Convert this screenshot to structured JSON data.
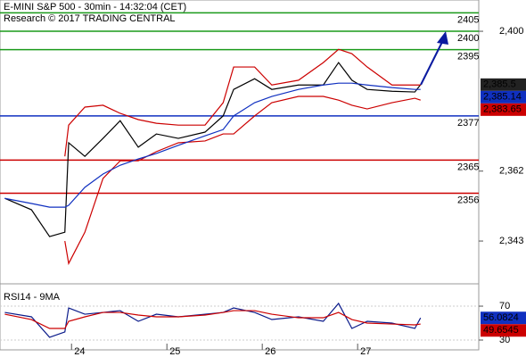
{
  "chart_data": [
    {
      "type": "line",
      "title": "E-MINI S&P 500 - 30min - 14:32:04 (CET)",
      "subtitle": "Research © 2017 TRADING CENTRAL",
      "x": [
        23.3,
        23.58,
        23.77,
        23.93,
        23.97,
        24.14,
        24.33,
        24.51,
        24.7,
        24.89,
        25.12,
        25.4,
        25.59,
        25.7,
        25.92,
        26.1,
        26.38,
        26.64,
        26.8,
        26.94,
        27.1,
        27.36,
        27.6,
        27.66
      ],
      "xlim": [
        23.25,
        28.27
      ],
      "xticks": [
        24,
        25,
        26,
        27
      ],
      "ylim": [
        2332.1,
        2408.5
      ],
      "yticks": [
        {
          "value": 2400,
          "label": "2,400"
        },
        {
          "value": 2362,
          "label": "2,362"
        },
        {
          "value": 2343,
          "label": "2,343"
        }
      ],
      "series": [
        {
          "color": "#000000",
          "values": [
            2354.6,
            2351.5,
            2344.2,
            2345.4,
            2369.7,
            2366.0,
            2370.9,
            2375.7,
            2368.5,
            2372.1,
            2370.9,
            2372.6,
            2377.0,
            2384.2,
            2387.1,
            2384.2,
            2385.4,
            2385.4,
            2391.5,
            2386.7,
            2384.2,
            2383.7,
            2383.5,
            2385.5
          ]
        },
        {
          "color": "#cc0000",
          "values": [
            null,
            null,
            null,
            2366.0,
            2374.5,
            2379.4,
            2379.9,
            2377.7,
            2376.0,
            2375.0,
            2374.5,
            2374.5,
            2380.6,
            2390.3,
            2390.3,
            2385.4,
            2386.7,
            2391.5,
            2395.1,
            2393.9,
            2390.3,
            2385.4,
            2385.4,
            2385.4
          ]
        },
        {
          "color": "#cc0000",
          "values": [
            null,
            null,
            null,
            2343.0,
            2336.9,
            2345.4,
            2360.0,
            2364.8,
            2364.8,
            2367.3,
            2369.7,
            2370.2,
            2372.1,
            2372.1,
            2377.0,
            2380.6,
            2382.3,
            2382.3,
            2381.3,
            2379.9,
            2378.9,
            2380.6,
            2381.8,
            2381.3
          ]
        },
        {
          "color": "#1030c0",
          "values": [
            2354.6,
            2353.2,
            2352.2,
            2352.2,
            2352.7,
            2357.6,
            2361.2,
            2363.6,
            2365.3,
            2366.8,
            2369.0,
            2371.6,
            2373.3,
            2377.0,
            2380.6,
            2382.3,
            2384.2,
            2385.4,
            2385.9,
            2385.9,
            2385.4,
            2384.7,
            2384.2,
            2384.2
          ]
        }
      ],
      "levels": [
        {
          "value": 2405,
          "color": "#1a9a1a"
        },
        {
          "value": 2400,
          "color": "#1a9a1a"
        },
        {
          "value": 2395,
          "color": "#1a9a1a"
        },
        {
          "value": 2377,
          "color": "#1030c0"
        },
        {
          "value": 2365,
          "color": "#cc0000"
        },
        {
          "value": 2356,
          "color": "#cc0000"
        }
      ],
      "last_values": [
        {
          "value": 2385.5,
          "label": "2,385.5",
          "color": "#222222"
        },
        {
          "value": 2385.14,
          "label": "2,385.14",
          "color": "#1030c0"
        },
        {
          "value": 2383.65,
          "label": "2,383.65",
          "color": "#cc0000"
        }
      ]
    },
    {
      "type": "line",
      "title": "RSI14 - 9MA",
      "ylim": [
        18.4,
        89
      ],
      "yticks": [
        70,
        30
      ],
      "series": [
        {
          "color": "#0a1a8a",
          "values": [
            62.6,
            57.4,
            33.2,
            39.5,
            67.9,
            60.5,
            62.6,
            64.7,
            52.1,
            60.5,
            57.4,
            60.5,
            62.6,
            67.9,
            62.6,
            54.2,
            57.4,
            52.1,
            73.2,
            43.7,
            52.1,
            50.0,
            43.7,
            56.1
          ]
        },
        {
          "color": "#cc0000",
          "values": [
            60.5,
            54.2,
            43.7,
            43.7,
            52.1,
            57.4,
            62.6,
            62.6,
            59.5,
            57.4,
            57.4,
            59.5,
            62.6,
            64.7,
            64.7,
            60.5,
            56.3,
            56.3,
            62.6,
            54.2,
            50.0,
            48.9,
            47.9,
            48.9
          ]
        }
      ],
      "last_values": [
        {
          "value": 56.0824,
          "color": "#1030c0"
        },
        {
          "value": 49.6545,
          "color": "#cc0000"
        }
      ]
    }
  ]
}
